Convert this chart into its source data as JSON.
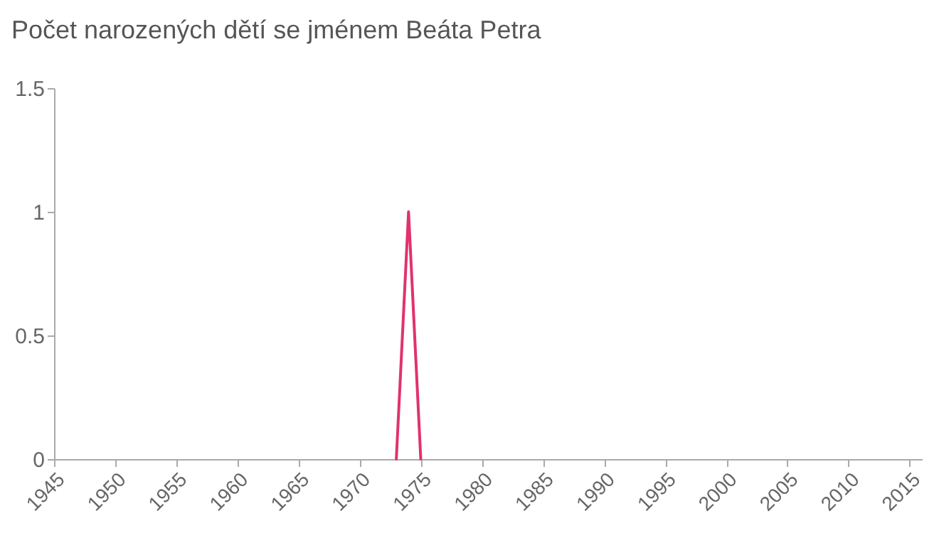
{
  "chart_data": {
    "type": "line",
    "title": "Počet narozených dětí se jménem Beáta Petra",
    "x": [
      1973,
      1974,
      1975
    ],
    "series": [
      {
        "color": "#e0326e",
        "values": [
          0,
          1,
          0
        ]
      }
    ],
    "xlim": [
      1945,
      2016
    ],
    "xticks": [
      1945,
      1950,
      1955,
      1960,
      1965,
      1970,
      1975,
      1980,
      1985,
      1990,
      1995,
      2000,
      2005,
      2010,
      2015
    ],
    "ylim": [
      0,
      1.5
    ],
    "yticks": [
      0,
      0.5,
      1,
      1.5
    ],
    "grid": false,
    "marker": "none",
    "line_style": "solid"
  }
}
